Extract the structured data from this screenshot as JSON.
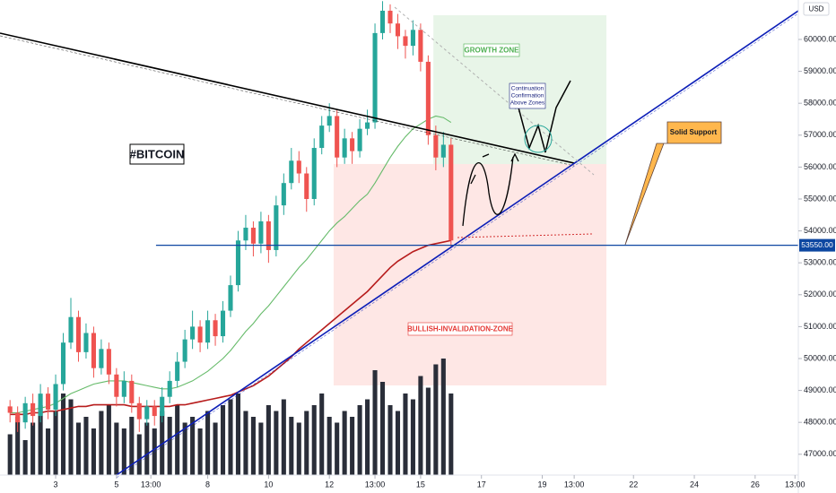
{
  "chart_data": {
    "type": "candlestick",
    "currency": "USD",
    "annotations": {
      "symbol": "#BITCOIN",
      "growth_zone": "GROWTH ZONE",
      "invalidation_zone": "BULLISH-INVALIDATION-ZONE",
      "note": [
        "Continuation",
        "Confirmation",
        "Above Zones"
      ],
      "support": "Solid Support"
    },
    "x": [
      1.5,
      1.75,
      2,
      2.25,
      2.5,
      2.75,
      3,
      3.25,
      3.5,
      3.75,
      4,
      4.25,
      4.5,
      4.75,
      5,
      5.25,
      5.5,
      5.75,
      6,
      6.25,
      6.5,
      6.75,
      7,
      7.25,
      7.5,
      7.75,
      8,
      8.25,
      8.5,
      8.75,
      9,
      9.25,
      9.5,
      9.75,
      10,
      10.25,
      10.5,
      10.75,
      11,
      11.25,
      11.5,
      11.75,
      12,
      12.25,
      12.5,
      12.75,
      13,
      13.25,
      13.5,
      13.75,
      14,
      14.25,
      14.5,
      14.75,
      15,
      15.25,
      15.5,
      15.75,
      16
    ],
    "open": [
      48500,
      48300,
      48000,
      48600,
      48200,
      48900,
      48400,
      49200,
      50500,
      51300,
      50200,
      50800,
      49700,
      50300,
      49500,
      48800,
      49300,
      48600,
      48100,
      48500,
      48200,
      48800,
      49300,
      49900,
      50600,
      51000,
      50500,
      51200,
      50700,
      51500,
      52300,
      53700,
      54100,
      53600,
      54300,
      53400,
      54800,
      55500,
      56200,
      55800,
      55000,
      56600,
      57300,
      57600,
      56300,
      56900,
      56500,
      57200,
      57400,
      60200,
      60900,
      60500,
      60100,
      59800,
      60300,
      59300,
      57000,
      56300,
      56700
    ],
    "high": [
      48700,
      48500,
      48800,
      48900,
      49200,
      49100,
      49500,
      50800,
      51900,
      51500,
      51100,
      51000,
      50600,
      50500,
      49700,
      49600,
      49500,
      48800,
      48700,
      48700,
      49100,
      49600,
      50200,
      50900,
      51500,
      51200,
      51500,
      51400,
      51800,
      52600,
      54000,
      54500,
      54300,
      54600,
      54500,
      55100,
      55800,
      56600,
      56500,
      56000,
      56900,
      57600,
      58000,
      57800,
      57200,
      57100,
      57500,
      57800,
      60500,
      61200,
      61100,
      60800,
      60300,
      60600,
      60500,
      59500,
      57300,
      57100,
      56900
    ],
    "low": [
      48000,
      47700,
      47800,
      47900,
      48000,
      48100,
      48200,
      49000,
      50300,
      49900,
      50000,
      49400,
      49500,
      49200,
      48500,
      48600,
      48300,
      47700,
      47900,
      47900,
      48000,
      48600,
      49100,
      49700,
      50300,
      50200,
      50300,
      50400,
      50500,
      51300,
      52100,
      53400,
      53200,
      53300,
      53000,
      53200,
      54500,
      55300,
      55500,
      54600,
      54800,
      56400,
      57100,
      56000,
      56100,
      56100,
      56300,
      57000,
      57200,
      60000,
      60200,
      59700,
      59400,
      59500,
      59000,
      56700,
      55900,
      56000,
      53500
    ],
    "close": [
      48300,
      48000,
      48600,
      48200,
      48900,
      48400,
      49200,
      50500,
      51300,
      50200,
      50800,
      49700,
      50300,
      49500,
      48800,
      49300,
      48600,
      48100,
      48500,
      48200,
      48800,
      49300,
      49900,
      50600,
      51000,
      50500,
      51200,
      50700,
      51500,
      52300,
      53700,
      54100,
      53600,
      54300,
      53400,
      54800,
      55500,
      56200,
      55800,
      55000,
      56600,
      57300,
      57600,
      56300,
      56900,
      56500,
      57200,
      57400,
      60200,
      60900,
      60500,
      60100,
      59800,
      60300,
      59300,
      57000,
      56300,
      56700,
      53700
    ],
    "volume": [
      35,
      50,
      30,
      45,
      60,
      40,
      55,
      70,
      65,
      45,
      50,
      40,
      55,
      60,
      45,
      40,
      50,
      35,
      45,
      40,
      55,
      50,
      60,
      45,
      50,
      40,
      55,
      45,
      60,
      65,
      70,
      55,
      50,
      45,
      60,
      55,
      65,
      50,
      45,
      55,
      60,
      70,
      50,
      45,
      55,
      50,
      60,
      65,
      90,
      80,
      60,
      55,
      70,
      65,
      85,
      75,
      95,
      100,
      70
    ],
    "moving_averages": [
      {
        "color": "#66bb6a",
        "values": [
          48300,
          48300,
          48350,
          48400,
          48450,
          48500,
          48600,
          48750,
          48900,
          49000,
          49100,
          49200,
          49250,
          49300,
          49300,
          49300,
          49250,
          49200,
          49150,
          49100,
          49050,
          49050,
          49100,
          49200,
          49300,
          49450,
          49600,
          49800,
          50000,
          50250,
          50550,
          50850,
          51100,
          51400,
          51650,
          51950,
          52250,
          52550,
          52850,
          53100,
          53400,
          53700,
          54000,
          54250,
          54450,
          54700,
          54950,
          55150,
          55500,
          55900,
          56300,
          56650,
          56950,
          57200,
          57350,
          57500,
          57600,
          57550,
          57400
        ]
      },
      {
        "color": "#b71c1c",
        "values": [
          48250,
          48250,
          48250,
          48300,
          48300,
          48350,
          48350,
          48400,
          48450,
          48500,
          48500,
          48550,
          48550,
          48550,
          48550,
          48550,
          48500,
          48500,
          48500,
          48500,
          48500,
          48500,
          48550,
          48550,
          48600,
          48650,
          48700,
          48750,
          48800,
          48850,
          48950,
          49050,
          49150,
          49300,
          49450,
          49650,
          49850,
          50050,
          50300,
          50500,
          50700,
          50900,
          51100,
          51300,
          51500,
          51700,
          51900,
          52100,
          52350,
          52600,
          52850,
          53050,
          53200,
          53350,
          53450,
          53550,
          53600,
          53650,
          53700
        ]
      }
    ],
    "up_color": "#26a69a",
    "down_color": "#ef5350",
    "support_level": {
      "value": 53550,
      "label": "53550.00"
    },
    "trendlines": [
      {
        "color": "#000000",
        "points": [
          [
            1.17,
            60197
          ],
          [
            20.05,
            56124
          ]
        ]
      },
      {
        "color": "#0d1fb8",
        "points": [
          [
            5,
            46348
          ],
          [
            27.42,
            60899
          ]
        ]
      }
    ],
    "zones": [
      {
        "color": "rgba(76,175,80,0.13)",
        "x": [
          15.42,
          21.11
        ],
        "y": [
          56096,
          60758
        ]
      },
      {
        "color": "rgba(244,67,54,0.13)",
        "x": [
          12.14,
          21.11
        ],
        "y": [
          49157,
          56096
        ]
      }
    ],
    "xlim": [
      1.17,
      27.42
    ],
    "ylim": [
      46348,
      61236
    ],
    "xticks": [
      3,
      5,
      {
        "value": 6.13,
        "label": "13:00"
      },
      8,
      10,
      12,
      {
        "value": 13.5,
        "label": "13:00"
      },
      15,
      17,
      19,
      {
        "value": 20.05,
        "label": "13:00"
      },
      22,
      24,
      26,
      {
        "value": 27.31,
        "label": "13:00"
      }
    ],
    "yticks": [
      {
        "value": 47000,
        "label": "47000.00"
      },
      {
        "value": 48000,
        "label": "48000.00"
      },
      {
        "value": 49000,
        "label": "49000.00"
      },
      {
        "value": 50000,
        "label": "50000.00"
      },
      {
        "value": 51000,
        "label": "51000.00"
      },
      {
        "value": 52000,
        "label": "52000.00"
      },
      {
        "value": 53000,
        "label": "53000.00"
      },
      {
        "value": 54000,
        "label": "54000.00"
      },
      {
        "value": 55000,
        "label": "55000.00"
      },
      {
        "value": 56000,
        "label": "56000.00"
      },
      {
        "value": 57000,
        "label": "57000.00"
      },
      {
        "value": 58000,
        "label": "58000.00"
      },
      {
        "value": 59000,
        "label": "59000.00"
      },
      {
        "value": 60000,
        "label": "60000.00"
      }
    ]
  }
}
